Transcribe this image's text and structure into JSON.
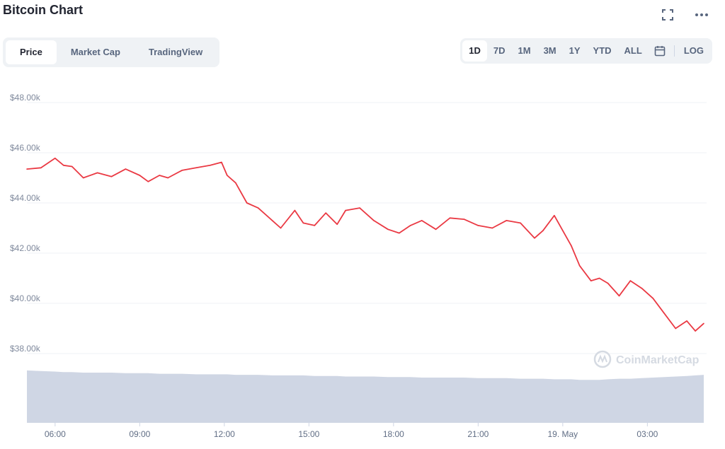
{
  "header": {
    "title": "Bitcoin Chart",
    "icons": [
      "expand-icon",
      "more-icon"
    ]
  },
  "view_tabs": [
    "Price",
    "Market Cap",
    "TradingView"
  ],
  "active_view": "Price",
  "range_buttons": [
    "1D",
    "7D",
    "1M",
    "3M",
    "1Y",
    "YTD",
    "ALL"
  ],
  "active_range": "1D",
  "log_label": "LOG",
  "watermark": "CoinMarketCap",
  "colors": {
    "price_line": "#ea3943",
    "volume_fill": "#cfd6e4",
    "grid": "#eff2f5",
    "tab_bg": "#eff2f5"
  },
  "chart_data": {
    "type": "line",
    "title": "Bitcoin Chart",
    "xlabel": "",
    "ylabel": "",
    "y_tick_labels": [
      "$48.00k",
      "$46.00k",
      "$44.00k",
      "$42.00k",
      "$40.00k",
      "$38.00k"
    ],
    "y_ticks": [
      48000,
      46000,
      44000,
      42000,
      40000,
      38000
    ],
    "x_tick_labels": [
      "06:00",
      "09:00",
      "12:00",
      "15:00",
      "18:00",
      "21:00",
      "19. May",
      "03:00"
    ],
    "x_ticks_hours": [
      6,
      9,
      12,
      15,
      18,
      21,
      24,
      27
    ],
    "xlim_hours": [
      5.0,
      29.1
    ],
    "ylim": [
      37400,
      49000
    ],
    "grid": true,
    "x_hours": [
      5.0,
      5.5,
      6.0,
      6.3,
      6.6,
      7.0,
      7.5,
      8.0,
      8.5,
      9.0,
      9.3,
      9.7,
      10.0,
      10.5,
      11.0,
      11.5,
      11.9,
      12.1,
      12.4,
      12.8,
      13.2,
      13.7,
      14.0,
      14.5,
      14.8,
      15.2,
      15.6,
      16.0,
      16.3,
      16.8,
      17.3,
      17.8,
      18.2,
      18.6,
      19.0,
      19.5,
      20.0,
      20.5,
      21.0,
      21.5,
      22.0,
      22.5,
      23.0,
      23.3,
      23.7,
      24.0,
      24.3,
      24.6,
      25.0,
      25.3,
      25.6,
      26.0,
      26.4,
      26.8,
      27.2,
      27.6,
      28.0,
      28.4,
      28.7,
      29.0
    ],
    "price": [
      45350,
      45400,
      45780,
      45500,
      45450,
      45000,
      45200,
      45050,
      45350,
      45100,
      44850,
      45100,
      45000,
      45300,
      45400,
      45500,
      45620,
      45100,
      44800,
      44000,
      43800,
      43300,
      43000,
      43700,
      43200,
      43100,
      43600,
      43150,
      43700,
      43800,
      43300,
      42950,
      42800,
      43100,
      43300,
      42950,
      43400,
      43350,
      43100,
      43000,
      43300,
      43200,
      42600,
      42900,
      43500,
      42900,
      42300,
      41500,
      40900,
      41000,
      40800,
      40300,
      40900,
      40600,
      40200,
      39600,
      39000,
      39300,
      38900,
      39200
    ],
    "volume": [
      0.95,
      0.94,
      0.93,
      0.92,
      0.92,
      0.91,
      0.91,
      0.91,
      0.9,
      0.9,
      0.9,
      0.89,
      0.89,
      0.89,
      0.88,
      0.88,
      0.88,
      0.88,
      0.87,
      0.87,
      0.87,
      0.86,
      0.86,
      0.86,
      0.86,
      0.85,
      0.85,
      0.85,
      0.84,
      0.84,
      0.84,
      0.83,
      0.83,
      0.83,
      0.82,
      0.82,
      0.82,
      0.82,
      0.81,
      0.81,
      0.81,
      0.8,
      0.8,
      0.8,
      0.79,
      0.79,
      0.79,
      0.78,
      0.78,
      0.78,
      0.79,
      0.8,
      0.8,
      0.81,
      0.82,
      0.83,
      0.84,
      0.85,
      0.86,
      0.87
    ]
  }
}
